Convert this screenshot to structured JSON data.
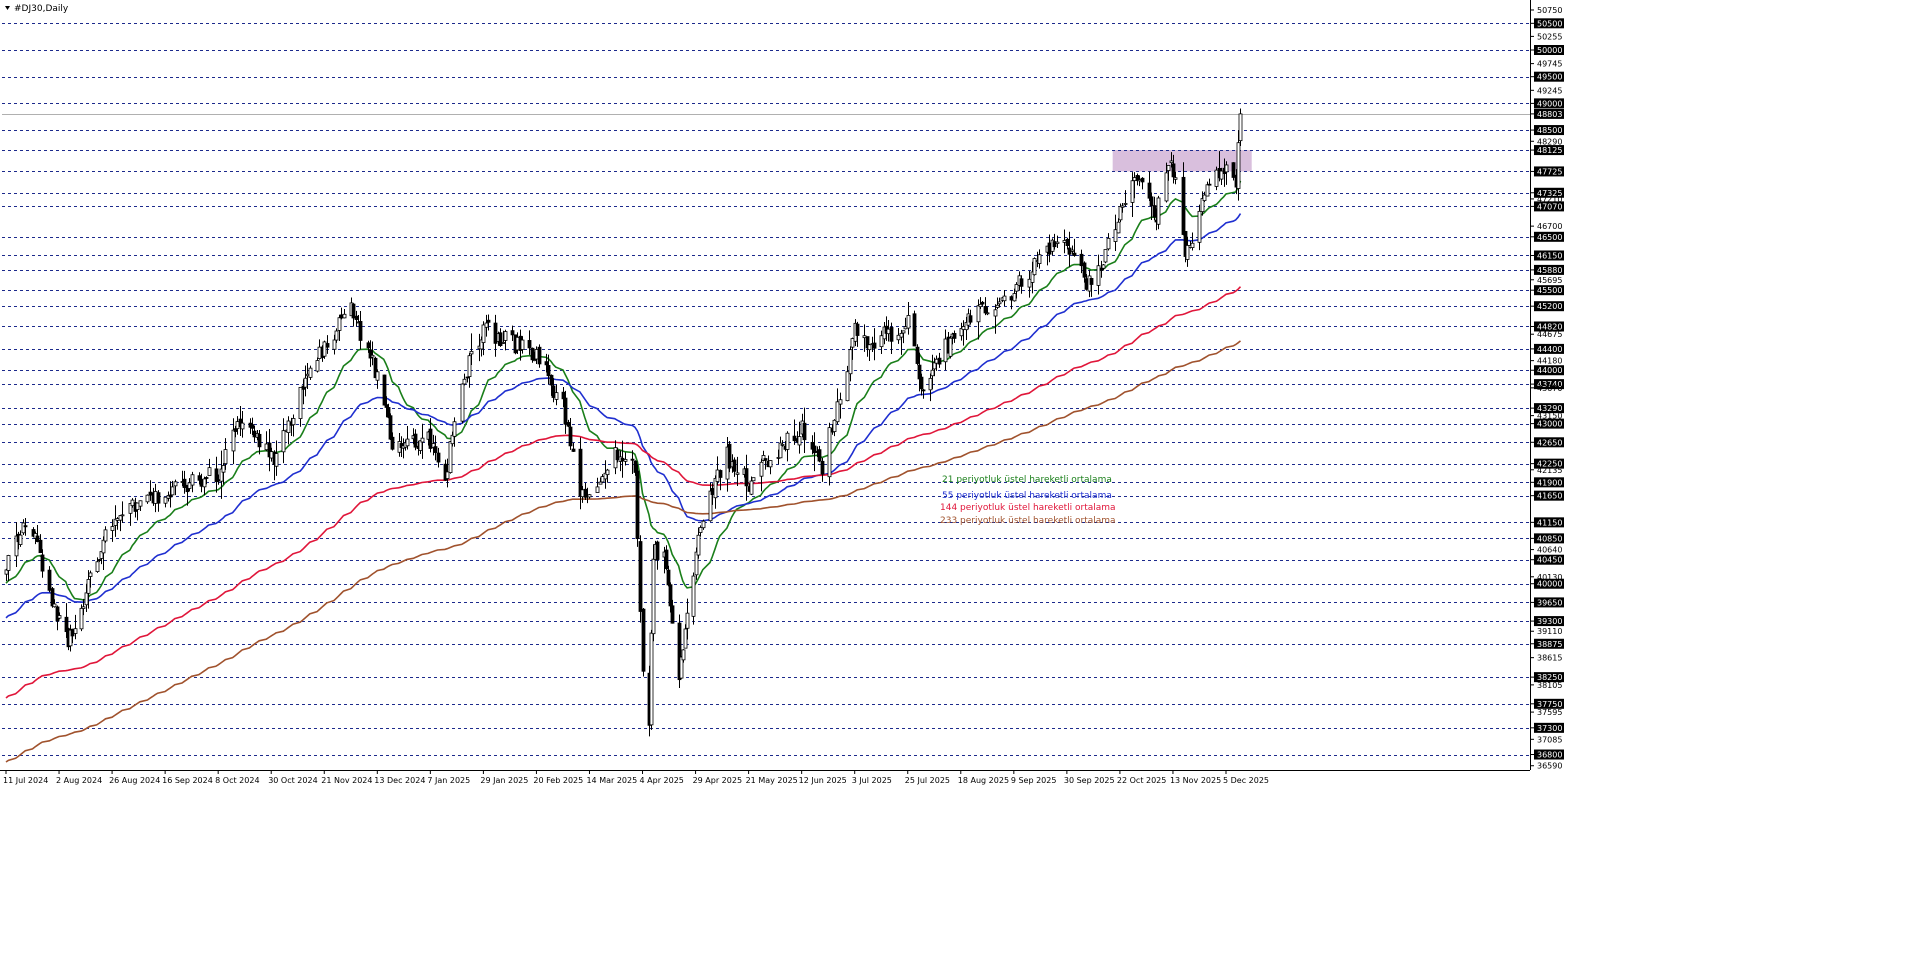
{
  "window": {
    "title": "#DJ30,Daily",
    "menu_icon": "triangle-down-icon"
  },
  "chart_data": {
    "type": "candlestick",
    "symbol": "#DJ30",
    "timeframe": "Daily",
    "current_price": 48803,
    "price_axis_labels": [
      "50750",
      "50500",
      "50255",
      "50000",
      "49745",
      "49500",
      "49245",
      "49000",
      "48803",
      "48500",
      "48290",
      "48125",
      "47725",
      "47325",
      "47210",
      "47070",
      "46700",
      "46500",
      "46150",
      "45880",
      "45695",
      "45500",
      "45200",
      "44820",
      "44675",
      "44400",
      "44180",
      "44000",
      "43740",
      "43670",
      "43290",
      "43150",
      "43000",
      "42650",
      "42250",
      "42135",
      "41900",
      "41650",
      "41150",
      "40850",
      "40640",
      "40450",
      "40130",
      "40000",
      "39650",
      "39300",
      "39110",
      "38875",
      "38615",
      "38250",
      "38105",
      "37750",
      "37595",
      "37300",
      "37085",
      "36800",
      "36590"
    ],
    "highlighted_price_labels": [
      "50500",
      "50000",
      "49500",
      "49000",
      "48500",
      "48125",
      "47725",
      "47325",
      "47070",
      "46500",
      "46150",
      "45880",
      "45500",
      "45200",
      "44820",
      "44400",
      "44000",
      "43740",
      "43290",
      "43000",
      "42650",
      "42250",
      "41900",
      "41650",
      "41150",
      "40850",
      "40450",
      "40000",
      "39650",
      "39300",
      "38875",
      "38250",
      "37750",
      "37300",
      "36800"
    ],
    "date_axis_labels": [
      "11 Jul 2024",
      "2 Aug 2024",
      "26 Aug 2024",
      "16 Sep 2024",
      "8 Oct 2024",
      "30 Oct 2024",
      "21 Nov 2024",
      "13 Dec 2024",
      "7 Jan 2025",
      "29 Jan 2025",
      "20 Feb 2025",
      "14 Mar 2025",
      "4 Apr 2025",
      "29 Apr 2025",
      "21 May 2025",
      "12 Jun 2025",
      "3 Jul 2025",
      "25 Jul 2025",
      "18 Aug 2025",
      "9 Sep 2025",
      "30 Sep 2025",
      "22 Oct 2025",
      "13 Nov 2025",
      "5 Dec 2025"
    ],
    "price_key_points": [
      [
        "11 Jul 2024",
        40300
      ],
      [
        "20 Jul 2024",
        41300
      ],
      [
        "2 Aug 2024",
        39300
      ],
      [
        "6 Aug 2024",
        38900
      ],
      [
        "26 Aug 2024",
        41200
      ],
      [
        "16 Sep 2024",
        41700
      ],
      [
        "8 Oct 2024",
        42100
      ],
      [
        "18 Oct 2024",
        43150
      ],
      [
        "30 Oct 2024",
        42300
      ],
      [
        "14 Nov 2024",
        43800
      ],
      [
        "21 Nov 2024",
        44500
      ],
      [
        "2 Dec 2024",
        45100
      ],
      [
        "13 Dec 2024",
        43900
      ],
      [
        "20 Dec 2024",
        42600
      ],
      [
        "7 Jan 2025",
        42700
      ],
      [
        "13 Jan 2025",
        42000
      ],
      [
        "20 Jan 2025",
        43800
      ],
      [
        "29 Jan 2025",
        44800
      ],
      [
        "10 Feb 2025",
        44500
      ],
      [
        "20 Feb 2025",
        44300
      ],
      [
        "3 Mar 2025",
        43300
      ],
      [
        "10 Mar 2025",
        41800
      ],
      [
        "14 Mar 2025",
        41600
      ],
      [
        "25 Mar 2025",
        42500
      ],
      [
        "1 Apr 2025",
        42200
      ],
      [
        "4 Apr 2025",
        38300
      ],
      [
        "7 Apr 2025",
        37300
      ],
      [
        "9 Apr 2025",
        40600
      ],
      [
        "15 Apr 2025",
        40400
      ],
      [
        "21 Apr 2025",
        38200
      ],
      [
        "29 Apr 2025",
        40500
      ],
      [
        "2 May 2025",
        41300
      ],
      [
        "12 May 2025",
        42400
      ],
      [
        "21 May 2025",
        41900
      ],
      [
        "28 May 2025",
        42300
      ],
      [
        "12 Jun 2025",
        42900
      ],
      [
        "20 Jun 2025",
        42200
      ],
      [
        "3 Jul 2025",
        44700
      ],
      [
        "10 Jul 2025",
        44500
      ],
      [
        "25 Jul 2025",
        44900
      ],
      [
        "1 Aug 2025",
        43600
      ],
      [
        "8 Aug 2025",
        44200
      ],
      [
        "18 Aug 2025",
        44900
      ],
      [
        "9 Sep 2025",
        45500
      ],
      [
        "22 Sep 2025",
        46300
      ],
      [
        "30 Sep 2025",
        46400
      ],
      [
        "10 Oct 2025",
        45500
      ],
      [
        "22 Oct 2025",
        46900
      ],
      [
        "28 Oct 2025",
        47600
      ],
      [
        "3 Nov 2025",
        47300
      ],
      [
        "6 Nov 2025",
        46900
      ],
      [
        "12 Nov 2025",
        48100
      ],
      [
        "18 Nov 2025",
        46100
      ],
      [
        "21 Nov 2025",
        46300
      ],
      [
        "28 Nov 2025",
        47600
      ],
      [
        "5 Dec 2025",
        47700
      ],
      [
        "9 Dec 2025",
        47600
      ],
      [
        "11 Dec 2025",
        48803
      ]
    ],
    "resistance_zone": {
      "from_price": 47725,
      "to_price": 48125,
      "color": "#d9bfdd"
    },
    "series": [
      {
        "name": "21 periyotluk üstel hareketli ortalama",
        "color": "#1a7f1a",
        "period": 21
      },
      {
        "name": "55 periyotluk üstel hareketli ortalama",
        "color": "#1f2fd0",
        "period": 55
      },
      {
        "name": "144 periyotluk üstel hareketli ortalama",
        "color": "#e0163a",
        "period": 144
      },
      {
        "name": "233 periyotluk üstel hareketli ortalama",
        "color": "#a0522d",
        "period": 233
      }
    ],
    "legend_position": "center",
    "grid": "horizontal dashed",
    "colors": {
      "candle": "#000000",
      "grid": "#1c2a8c",
      "axis_highlight_bg": "#000000",
      "axis_highlight_text": "#ffffff",
      "current_price_line": "#b0b0b0"
    }
  }
}
